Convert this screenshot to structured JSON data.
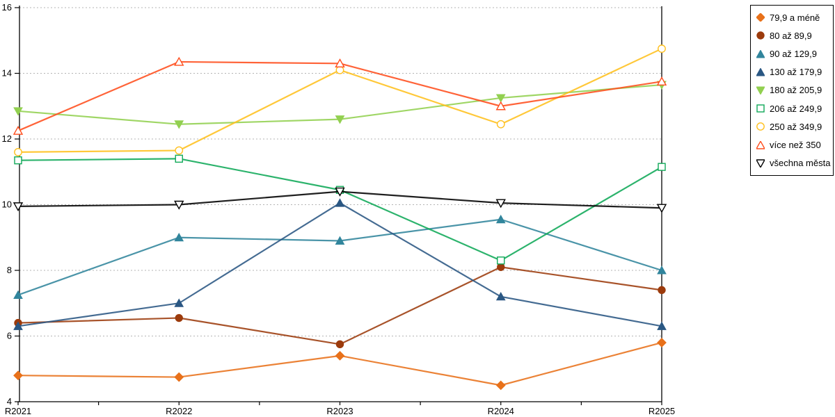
{
  "chart_data": {
    "type": "line",
    "title": "",
    "xlabel": "",
    "ylabel": "",
    "categories": [
      "R2021",
      "R2022",
      "R2023",
      "R2024",
      "R2025"
    ],
    "ylim": [
      4,
      16
    ],
    "yticks": [
      4,
      6,
      8,
      10,
      12,
      14,
      16
    ],
    "grid": "horizontal-dotted",
    "gridline_color": "#b3b3b3",
    "axis_color": "#000000",
    "legend_position": "top-right",
    "series": [
      {
        "name": "79,9 a méně",
        "color": "#E8711A",
        "marker": "diamond",
        "fill": "solid",
        "values": [
          4.8,
          4.75,
          5.4,
          4.5,
          5.8
        ]
      },
      {
        "name": "80 až 89,9",
        "color": "#9C3B0C",
        "marker": "circle",
        "fill": "solid",
        "values": [
          6.4,
          6.55,
          5.75,
          8.1,
          7.4
        ]
      },
      {
        "name": "90 až 129,9",
        "color": "#31859C",
        "marker": "triangle-up",
        "fill": "solid",
        "values": [
          7.25,
          9.0,
          8.9,
          9.55,
          8.0
        ]
      },
      {
        "name": "130 až 179,9",
        "color": "#2A5783",
        "marker": "triangle-up",
        "fill": "solid",
        "values": [
          6.3,
          7.0,
          10.05,
          7.2,
          6.3
        ]
      },
      {
        "name": "180 až 205,9",
        "color": "#92D050",
        "marker": "triangle-down",
        "fill": "solid",
        "values": [
          12.85,
          12.45,
          12.6,
          13.25,
          13.65
        ]
      },
      {
        "name": "206 až 249,9",
        "color": "#0FA958",
        "marker": "square",
        "fill": "hollow",
        "values": [
          11.35,
          11.4,
          10.45,
          8.3,
          11.15
        ]
      },
      {
        "name": "250 až 349,9",
        "color": "#FFC01E",
        "marker": "circle",
        "fill": "hollow",
        "values": [
          11.6,
          11.65,
          14.1,
          12.45,
          14.75
        ]
      },
      {
        "name": "více než 350",
        "color": "#FF4D1C",
        "marker": "triangle-up",
        "fill": "hollow",
        "values": [
          12.25,
          14.35,
          14.3,
          13.0,
          13.75
        ]
      },
      {
        "name": "všechna města",
        "color": "#000000",
        "marker": "triangle-down",
        "fill": "hollow",
        "values": [
          9.95,
          10.0,
          10.4,
          10.05,
          9.9
        ]
      }
    ]
  }
}
